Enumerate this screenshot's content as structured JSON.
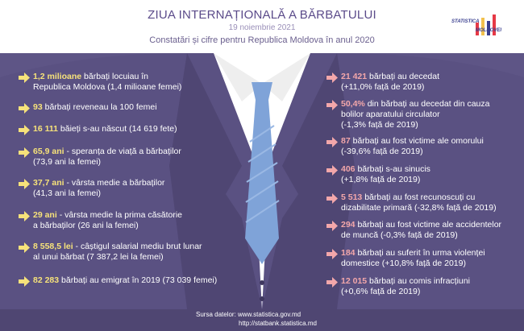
{
  "header": {
    "title": "ZIUA INTERNAȚIONALĂ A BĂRBATULUI",
    "date": "19 noiembrie 2021",
    "subtitle": "Constatări și cifre pentru Republica Moldova în anul 2020"
  },
  "logo": {
    "line1": "STATISTICA",
    "line2": "MOLDOVEI",
    "colors": [
      "#e63946",
      "#f2c14e",
      "#3a3f8f",
      "#e63946"
    ]
  },
  "colors": {
    "background": "#5e5586",
    "left_accent": "#f6e27a",
    "right_accent": "#f3a7aa",
    "tie": "#7fa3d8"
  },
  "left_items": [
    {
      "value": "1,2 milioane",
      "text": " bărbați locuiau în",
      "line2": "Republica Moldova (1,4 milioane femei)"
    },
    {
      "value": "93",
      "text": " bărbați reveneau la 100 femei",
      "line2": ""
    },
    {
      "value": "16 111",
      "text": " băieți s-au născut (14 619 fete)",
      "line2": ""
    },
    {
      "value": "65,9 ani",
      "text": " - speranța de viață a bărbaților",
      "line2": "(73,9 ani la femei)"
    },
    {
      "value": "37,7 ani",
      "text": " - vârsta medie a bărbaților",
      "line2": "(41,3 ani la femei)"
    },
    {
      "value": "29 ani",
      "text": "  - vârsta medie la prima căsătorie",
      "line2": "a bărbaților (26 ani la femei)"
    },
    {
      "value": "8 558,5 lei",
      "text": " - câștigul salarial mediu brut lunar",
      "line2": "al unui bărbat (7 387,2 lei la femei)"
    },
    {
      "value": "82 283",
      "text": " bărbați au emigrat în 2019 (73 039 femei)",
      "line2": ""
    }
  ],
  "right_items": [
    {
      "value": "21 421",
      "text": " bărbați au decedat",
      "line2": "(+11,0% față de 2019)"
    },
    {
      "value": "50,4%",
      "text": " din bărbați au decedat din cauza",
      "line2": "bolilor aparatului circulator",
      "line3": "(-1,3% față de 2019)"
    },
    {
      "value": "87",
      "text": " bărbați au fost victime ale omorului",
      "line2": "(-39,6% față de 2019)"
    },
    {
      "value": "406",
      "text": " bărbați s-au sinucis",
      "line2": "(+1,8% față de 2019)"
    },
    {
      "value": "5 513",
      "text": " bărbați au fost recunoscuți cu",
      "line2": "dizabilitate primară (-32,8% față de 2019)"
    },
    {
      "value": "294",
      "text": " bărbați au fost victime ale accidentelor",
      "line2": "de muncă (-0,3% față de 2019)"
    },
    {
      "value": "184",
      "text": " bărbați au suferit în urma violenței",
      "line2": "domestice (+10,8% față de 2019)"
    },
    {
      "value": "12 015",
      "text": " bărbați au comis infracțiuni",
      "line2": "(+0,6% față de 2019)"
    }
  ],
  "footer": {
    "source_line1": "Sursa datelor: www.statistica.gov.md",
    "source_line2": "http://statbank.statistica.md"
  }
}
